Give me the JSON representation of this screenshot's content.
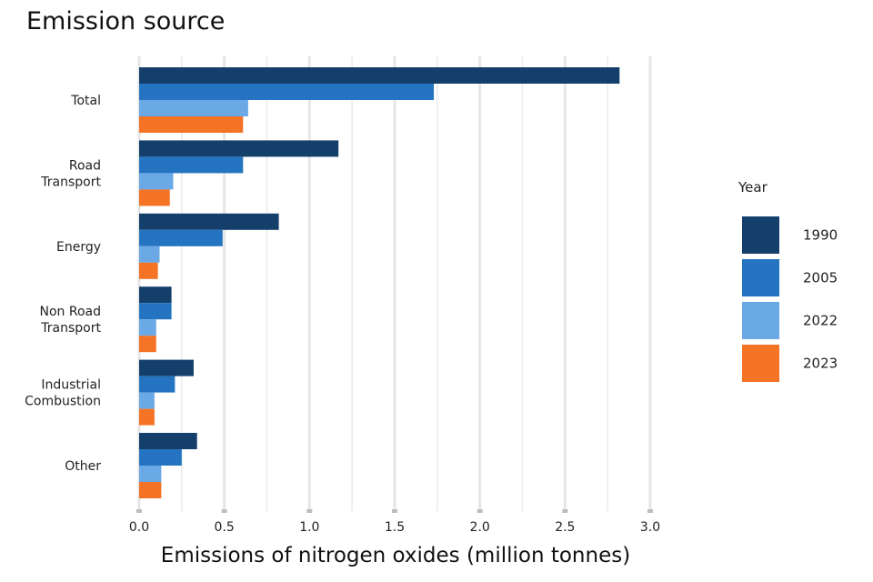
{
  "chart_data": {
    "type": "bar",
    "orientation": "horizontal",
    "title": "Emission source",
    "xlabel": "Emissions of nitrogen oxides (million tonnes)",
    "ylabel": "",
    "xlim": [
      0,
      3.0
    ],
    "x_ticks": [
      "0.0",
      "0.5",
      "1.0",
      "1.5",
      "2.0",
      "2.5",
      "3.0"
    ],
    "grid": "vertical",
    "categories": [
      {
        "lines": [
          "Total"
        ]
      },
      {
        "lines": [
          "Road",
          "Transport"
        ]
      },
      {
        "lines": [
          "Energy"
        ]
      },
      {
        "lines": [
          "Non Road",
          "Transport"
        ]
      },
      {
        "lines": [
          "Industrial",
          "Combustion"
        ]
      },
      {
        "lines": [
          "Other"
        ]
      }
    ],
    "series": [
      {
        "name": "1990",
        "color": "#143f6b",
        "values": [
          2.82,
          1.17,
          0.82,
          0.19,
          0.32,
          0.34
        ]
      },
      {
        "name": "2005",
        "color": "#2574c1",
        "values": [
          1.73,
          0.61,
          0.49,
          0.19,
          0.21,
          0.25
        ]
      },
      {
        "name": "2022",
        "color": "#6aa9e6",
        "values": [
          0.64,
          0.2,
          0.12,
          0.1,
          0.09,
          0.13
        ]
      },
      {
        "name": "2023",
        "color": "#f47325",
        "values": [
          0.61,
          0.18,
          0.11,
          0.1,
          0.09,
          0.13
        ]
      }
    ],
    "legend": {
      "title": "Year",
      "placement": "right"
    }
  }
}
